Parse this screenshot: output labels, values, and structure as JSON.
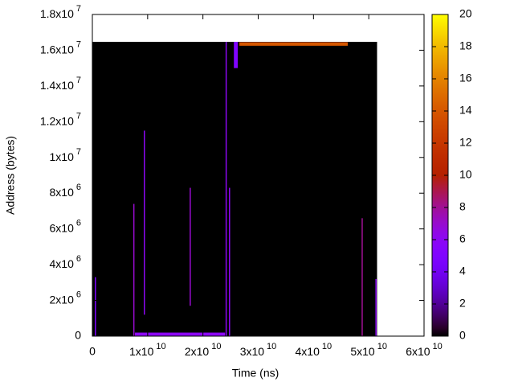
{
  "chart_data": {
    "type": "heatmap",
    "xlabel": "Time (ns)",
    "ylabel": "Address (bytes)",
    "xlim": [
      0,
      60000000000
    ],
    "ylim": [
      0,
      18000000
    ],
    "xticks": [
      0,
      {
        "value": 10000000000,
        "label": "1x10^10"
      },
      {
        "value": 20000000000,
        "label": "2x10^10"
      },
      {
        "value": 30000000000,
        "label": "3x10^10"
      },
      {
        "value": 40000000000,
        "label": "4x10^10"
      },
      {
        "value": 50000000000,
        "label": "5x10^10"
      },
      {
        "value": 60000000000,
        "label": "6x10^10"
      }
    ],
    "yticks": [
      0,
      {
        "value": 2000000,
        "label": "2x10^6"
      },
      {
        "value": 4000000,
        "label": "4x10^6"
      },
      {
        "value": 6000000,
        "label": "6x10^6"
      },
      {
        "value": 8000000,
        "label": "8x10^6"
      },
      {
        "value": 10000000,
        "label": "1x10^7"
      },
      {
        "value": 12000000,
        "label": "1.2x10^7"
      },
      {
        "value": 14000000,
        "label": "1.4x10^7"
      },
      {
        "value": 16000000,
        "label": "1.6x10^7"
      },
      {
        "value": 18000000,
        "label": "1.8x10^7"
      }
    ],
    "cblim": [
      0,
      20
    ],
    "cbticks": [
      0,
      2,
      4,
      6,
      8,
      10,
      12,
      14,
      16,
      18,
      20
    ],
    "cells": [
      {
        "x": [
          0,
          51500000000
        ],
        "y": [
          0,
          16470000
        ],
        "value": 0
      },
      {
        "x": [
          440000000,
          520000000
        ],
        "y": [
          0,
          3300000
        ],
        "value": 5
      },
      {
        "x": [
          7400000000,
          7480000000
        ],
        "y": [
          0,
          7400000
        ],
        "value": 7
      },
      {
        "x": [
          9300000000,
          9380000000
        ],
        "y": [
          1200000,
          11500000
        ],
        "value": 6
      },
      {
        "x": [
          7700000000,
          24000000000
        ],
        "y": [
          0,
          200000
        ],
        "value": 6
      },
      {
        "x": [
          17600000000,
          17680000000
        ],
        "y": [
          1700000,
          8300000
        ],
        "value": 7
      },
      {
        "x": [
          24100000000,
          24180000000
        ],
        "y": [
          0,
          16470000
        ],
        "value": 6
      },
      {
        "x": [
          24700000000,
          24780000000
        ],
        "y": [
          0,
          8300000
        ],
        "value": 6
      },
      {
        "x": [
          25600000000,
          26300000000
        ],
        "y": [
          15000000,
          16470000
        ],
        "value": 5
      },
      {
        "x": [
          26600000000,
          46200000000
        ],
        "y": [
          16250000,
          16450000
        ],
        "value": 14
      },
      {
        "x": [
          48700000000,
          48780000000
        ],
        "y": [
          0,
          6600000
        ],
        "value": 8
      },
      {
        "x": [
          51200000000,
          51280000000
        ],
        "y": [
          0,
          3200000
        ],
        "value": 6
      }
    ]
  }
}
